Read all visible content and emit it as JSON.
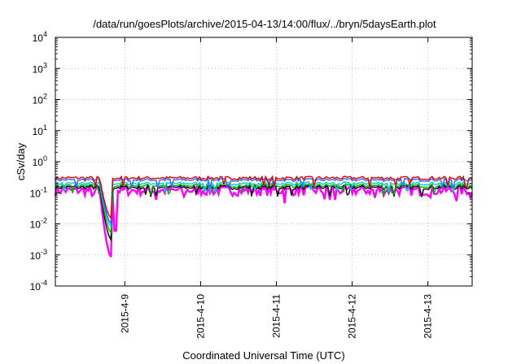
{
  "chart_data": {
    "type": "line",
    "title": "/data/run/goesPlots/archive/2015-04-13/14:00/flux/../bryn/5daysEarth.plot",
    "xlabel": "Coordinated Universal Time (UTC)",
    "ylabel": "cSv/day",
    "yscale": "log",
    "ylim": [
      0.0001,
      10000
    ],
    "x_range": [
      "2015-04-08T02:00",
      "2015-04-13T14:00"
    ],
    "grid": true,
    "legend": "none",
    "y_ticks": [
      {
        "base": "10",
        "exp": "-4",
        "value": 0.0001
      },
      {
        "base": "10",
        "exp": "-3",
        "value": 0.001
      },
      {
        "base": "10",
        "exp": "-2",
        "value": 0.01
      },
      {
        "base": "10",
        "exp": "-1",
        "value": 0.1
      },
      {
        "base": "10",
        "exp": "0",
        "value": 1
      },
      {
        "base": "10",
        "exp": "1",
        "value": 10
      },
      {
        "base": "10",
        "exp": "2",
        "value": 100
      },
      {
        "base": "10",
        "exp": "3",
        "value": 1000
      },
      {
        "base": "10",
        "exp": "4",
        "value": 10000
      }
    ],
    "x_ticks": [
      {
        "label": "2015-4-9",
        "date": "2015-04-09"
      },
      {
        "label": "2015-4-10",
        "date": "2015-04-10"
      },
      {
        "label": "2015-4-11",
        "date": "2015-04-11"
      },
      {
        "label": "2015-4-12",
        "date": "2015-04-12"
      },
      {
        "label": "2015-4-13",
        "date": "2015-04-13"
      }
    ],
    "series": [
      {
        "color": "#ff00ff",
        "base": 0.12,
        "variation": 0.09,
        "dip_min": 0.0008,
        "dip_at": [
          "2015-04-08T16:00",
          "2015-04-08T20:00"
        ],
        "dip2_min": 0.006,
        "dip2_at": "2015-04-08T21:00"
      },
      {
        "color": "#000000",
        "base": 0.15,
        "variation": 0.05,
        "dip_min": 0.003,
        "dip_at": [
          "2015-04-08T16:00",
          "2015-04-08T20:00"
        ]
      },
      {
        "color": "#00aa00",
        "base": 0.17,
        "variation": 0.05,
        "dip_min": 0.005,
        "dip_at": [
          "2015-04-08T16:00",
          "2015-04-08T20:00"
        ]
      },
      {
        "color": "#00cccc",
        "base": 0.2,
        "variation": 0.05,
        "dip_min": 0.008,
        "dip_at": [
          "2015-04-08T16:00",
          "2015-04-08T20:00"
        ]
      },
      {
        "color": "#3366ff",
        "base": 0.26,
        "variation": 0.06,
        "dip_min": 0.01,
        "dip_at": [
          "2015-04-08T16:00",
          "2015-04-08T20:00"
        ]
      },
      {
        "color": "#dd0000",
        "base": 0.3,
        "variation": 0.08,
        "dip_min": 0.015,
        "dip_at": [
          "2015-04-08T16:00",
          "2015-04-08T20:00"
        ]
      }
    ]
  }
}
